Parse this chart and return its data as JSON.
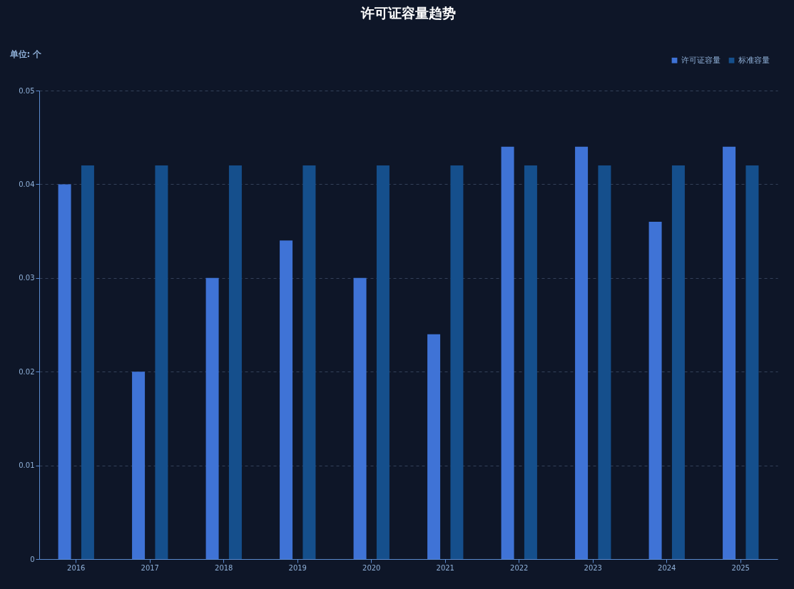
{
  "chart_data": {
    "type": "bar",
    "title": "许可证容量趋势",
    "ylabel": "单位: 个",
    "categories": [
      "2016",
      "2017",
      "2018",
      "2019",
      "2020",
      "2021",
      "2022",
      "2023",
      "2024",
      "2025"
    ],
    "series": [
      {
        "name": "许可证容量",
        "color": "#3f73d6",
        "values": [
          0.04,
          0.02,
          0.03,
          0.034,
          0.03,
          0.024,
          0.044,
          0.044,
          0.036,
          0.044
        ]
      },
      {
        "name": "标准容量",
        "color": "#154f8c",
        "values": [
          0.042,
          0.042,
          0.042,
          0.042,
          0.042,
          0.042,
          0.042,
          0.042,
          0.042,
          0.042
        ]
      }
    ],
    "ylim": [
      0,
      0.05
    ],
    "yticks": [
      0,
      0.01,
      0.02,
      0.03,
      0.04,
      0.05
    ],
    "grid": "y",
    "legend": "top right"
  }
}
